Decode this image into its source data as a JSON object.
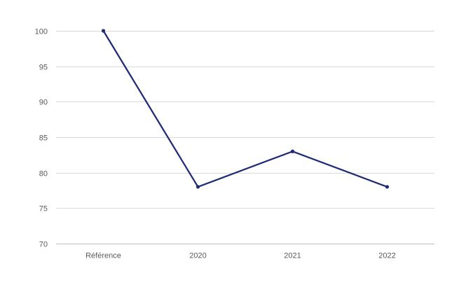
{
  "chart_data": {
    "type": "line",
    "title": "",
    "xlabel": "",
    "ylabel": "",
    "categories": [
      "Référence",
      "2020",
      "2021",
      "2022"
    ],
    "series": [
      {
        "values": [
          100,
          78,
          83,
          78
        ],
        "color": "#1f2a78"
      }
    ],
    "ylim": [
      70,
      100
    ],
    "yticks": [
      70,
      75,
      80,
      85,
      90,
      95,
      100
    ],
    "grid": true,
    "legend": "none"
  }
}
